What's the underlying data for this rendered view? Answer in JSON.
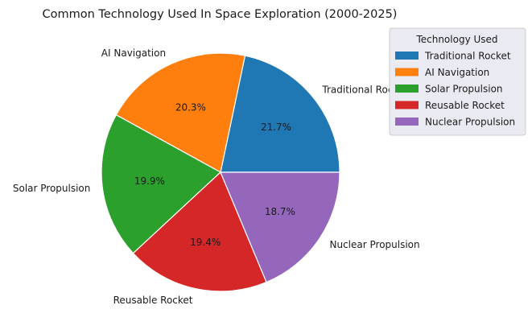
{
  "chart_data": {
    "type": "pie",
    "title": "Common Technology Used In Space Exploration (2000-2025)",
    "categories": [
      "Traditional Rocket",
      "AI Navigation",
      "Solar Propulsion",
      "Reusable Rocket",
      "Nuclear Propulsion"
    ],
    "values": [
      21.7,
      20.3,
      19.9,
      19.4,
      18.7
    ],
    "percent_labels": [
      "21.7%",
      "20.3%",
      "19.9%",
      "19.4%",
      "18.7%"
    ],
    "colors": [
      "#1f77b4",
      "#ff7f0e",
      "#2ca02c",
      "#d62728",
      "#9467bd"
    ],
    "start_angle": 0,
    "direction": "counterclockwise",
    "legend": {
      "title": "Technology Used",
      "placement": "upper-right",
      "entries": [
        "Traditional Rocket",
        "AI Navigation",
        "Solar Propulsion",
        "Reusable Rocket",
        "Nuclear Propulsion"
      ]
    }
  }
}
